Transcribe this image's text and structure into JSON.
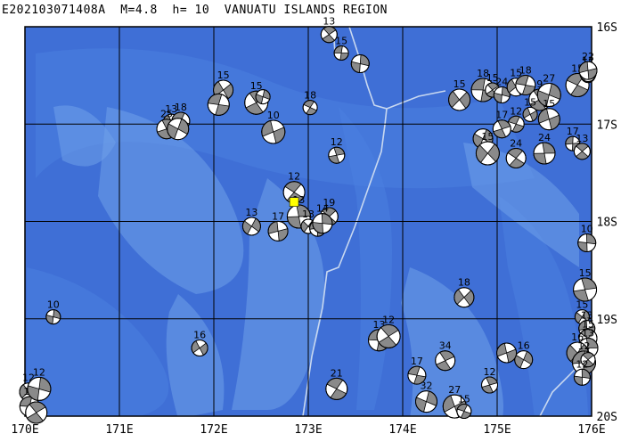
{
  "title": "E202103071408A  M=4.8  h= 10  VANUATU ISLANDS REGION",
  "map": {
    "lon_range": [
      170,
      176
    ],
    "lat_range": [
      -20,
      -16
    ],
    "lon_labels": [
      "170E",
      "171E",
      "172E",
      "173E",
      "174E",
      "175E",
      "176E"
    ],
    "lat_labels": [
      "16S",
      "17S",
      "18S",
      "19S",
      "20S"
    ],
    "ocean_color": "#3f6fd6",
    "deep_color": "#4a7fe0",
    "shallow_color": "#6fa0ea",
    "grid_color": "#000000",
    "boundary_color": "#c8d8f0",
    "event_marker_color": "#ffff00"
  },
  "event": {
    "lon": 172.85,
    "lat": -17.8
  },
  "mechanisms": [
    {
      "lon": 173.35,
      "lat": -16.27,
      "depth": "15"
    },
    {
      "lon": 173.22,
      "lat": -16.08,
      "depth": "13"
    },
    {
      "lon": 173.55,
      "lat": -16.38,
      "depth": ""
    },
    {
      "lon": 172.1,
      "lat": -16.65,
      "depth": "15"
    },
    {
      "lon": 172.05,
      "lat": -16.8,
      "depth": ""
    },
    {
      "lon": 172.45,
      "lat": -16.78,
      "depth": "15"
    },
    {
      "lon": 172.52,
      "lat": -16.72,
      "depth": ""
    },
    {
      "lon": 171.55,
      "lat": -16.98,
      "depth": "13"
    },
    {
      "lon": 171.65,
      "lat": -16.97,
      "depth": "18"
    },
    {
      "lon": 171.5,
      "lat": -17.05,
      "depth": "25"
    },
    {
      "lon": 171.62,
      "lat": -17.05,
      "depth": ""
    },
    {
      "lon": 172.63,
      "lat": -17.08,
      "depth": "10"
    },
    {
      "lon": 173.02,
      "lat": -16.83,
      "depth": "18"
    },
    {
      "lon": 173.3,
      "lat": -17.32,
      "depth": "12"
    },
    {
      "lon": 172.4,
      "lat": -18.05,
      "depth": "13"
    },
    {
      "lon": 172.68,
      "lat": -18.1,
      "depth": "17"
    },
    {
      "lon": 172.85,
      "lat": -17.7,
      "depth": "12"
    },
    {
      "lon": 172.9,
      "lat": -17.95,
      "depth": "13"
    },
    {
      "lon": 173.0,
      "lat": -18.05,
      "depth": "13"
    },
    {
      "lon": 173.1,
      "lat": -18.07,
      "depth": ""
    },
    {
      "lon": 173.22,
      "lat": -17.95,
      "depth": "19"
    },
    {
      "lon": 173.15,
      "lat": -18.02,
      "depth": "14"
    },
    {
      "lon": 174.6,
      "lat": -16.75,
      "depth": "15"
    },
    {
      "lon": 174.85,
      "lat": -16.65,
      "depth": "18"
    },
    {
      "lon": 174.95,
      "lat": -16.65,
      "depth": "15"
    },
    {
      "lon": 175.05,
      "lat": -16.7,
      "depth": "24"
    },
    {
      "lon": 175.2,
      "lat": -16.62,
      "depth": "15"
    },
    {
      "lon": 175.3,
      "lat": -16.6,
      "depth": "18"
    },
    {
      "lon": 175.45,
      "lat": -16.75,
      "depth": "9"
    },
    {
      "lon": 175.55,
      "lat": -16.7,
      "depth": "27"
    },
    {
      "lon": 175.35,
      "lat": -16.9,
      "depth": "15"
    },
    {
      "lon": 175.2,
      "lat": -17.0,
      "depth": "12"
    },
    {
      "lon": 175.05,
      "lat": -17.05,
      "depth": "17"
    },
    {
      "lon": 174.85,
      "lat": -17.15,
      "depth": ""
    },
    {
      "lon": 175.55,
      "lat": -16.95,
      "depth": "15"
    },
    {
      "lon": 175.85,
      "lat": -16.6,
      "depth": "15"
    },
    {
      "lon": 176.0,
      "lat": -16.5,
      "depth": "15"
    },
    {
      "lon": 176.2,
      "lat": -16.48,
      "depth": "12"
    },
    {
      "lon": 176.3,
      "lat": -16.45,
      "depth": "22"
    },
    {
      "lon": 175.2,
      "lat": -17.35,
      "depth": "24"
    },
    {
      "lon": 175.5,
      "lat": -17.3,
      "depth": "24"
    },
    {
      "lon": 174.9,
      "lat": -17.3,
      "depth": "15"
    },
    {
      "lon": 175.8,
      "lat": -17.2,
      "depth": "17"
    },
    {
      "lon": 175.9,
      "lat": -17.28,
      "depth": "13"
    },
    {
      "lon": 175.95,
      "lat": -18.22,
      "depth": "10"
    },
    {
      "lon": 174.65,
      "lat": -18.78,
      "depth": "18"
    },
    {
      "lon": 173.75,
      "lat": -19.22,
      "depth": "13"
    },
    {
      "lon": 173.85,
      "lat": -19.18,
      "depth": "12"
    },
    {
      "lon": 170.3,
      "lat": -18.98,
      "depth": "10"
    },
    {
      "lon": 171.85,
      "lat": -19.3,
      "depth": "16"
    },
    {
      "lon": 174.15,
      "lat": -19.58,
      "depth": "17"
    },
    {
      "lon": 174.45,
      "lat": -19.43,
      "depth": "34"
    },
    {
      "lon": 174.25,
      "lat": -19.85,
      "depth": "32"
    },
    {
      "lon": 174.55,
      "lat": -19.9,
      "depth": "27"
    },
    {
      "lon": 174.65,
      "lat": -19.95,
      "depth": "15"
    },
    {
      "lon": 174.92,
      "lat": -19.68,
      "depth": "12"
    },
    {
      "lon": 175.28,
      "lat": -19.42,
      "depth": "16"
    },
    {
      "lon": 175.1,
      "lat": -19.35,
      "depth": ""
    },
    {
      "lon": 173.3,
      "lat": -19.72,
      "depth": "21"
    },
    {
      "lon": 175.93,
      "lat": -18.7,
      "depth": "15"
    },
    {
      "lon": 175.9,
      "lat": -18.98,
      "depth": "15"
    },
    {
      "lon": 175.95,
      "lat": -19.1,
      "depth": "13"
    },
    {
      "lon": 175.97,
      "lat": -19.2,
      "depth": "15"
    },
    {
      "lon": 176.05,
      "lat": -19.3,
      "depth": "13"
    },
    {
      "lon": 175.85,
      "lat": -19.35,
      "depth": "16"
    },
    {
      "lon": 175.92,
      "lat": -19.45,
      "depth": "12"
    },
    {
      "lon": 176.05,
      "lat": -19.42,
      "depth": ""
    },
    {
      "lon": 175.9,
      "lat": -19.6,
      "depth": "12"
    },
    {
      "lon": 170.0,
      "lat": -19.75,
      "depth": "12"
    },
    {
      "lon": 170.05,
      "lat": -19.9,
      "depth": "13"
    },
    {
      "lon": 170.12,
      "lat": -20.0,
      "depth": "2"
    },
    {
      "lon": 170.15,
      "lat": -19.72,
      "depth": "12"
    }
  ]
}
